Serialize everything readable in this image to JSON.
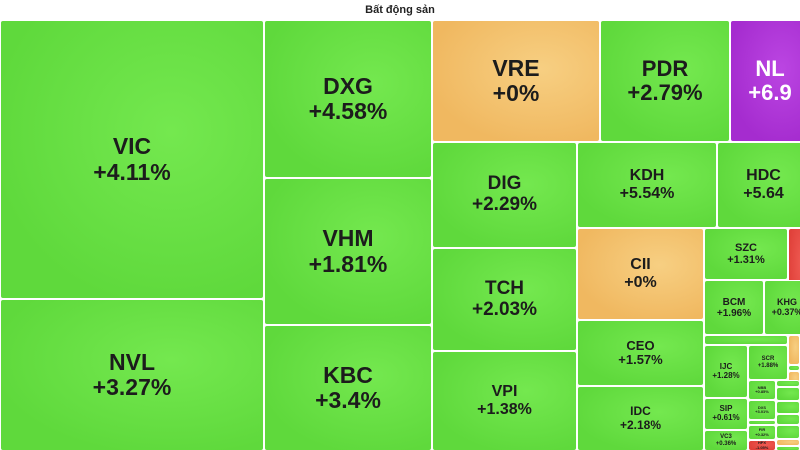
{
  "chart_data": {
    "type": "treemap",
    "title": "Bất động sản",
    "colors": {
      "up": "#5fd93c",
      "up_light": "#74e84f",
      "flat": "#f0b860",
      "flat_light": "#f7cf82",
      "ceiling": "#a52ccf",
      "ceiling_light": "#bb45e2",
      "down": "#e0413a",
      "down_light": "#ef5a52"
    },
    "tiles": [
      {
        "ticker": "VIC",
        "change": "+4.11%",
        "color": "up"
      },
      {
        "ticker": "NVL",
        "change": "+3.27%",
        "color": "up"
      },
      {
        "ticker": "DXG",
        "change": "+4.58%",
        "color": "up"
      },
      {
        "ticker": "VHM",
        "change": "+1.81%",
        "color": "up"
      },
      {
        "ticker": "KBC",
        "change": "+3.4%",
        "color": "up"
      },
      {
        "ticker": "VRE",
        "change": "+0%",
        "color": "flat"
      },
      {
        "ticker": "DIG",
        "change": "+2.29%",
        "color": "up"
      },
      {
        "ticker": "TCH",
        "change": "+2.03%",
        "color": "up"
      },
      {
        "ticker": "VPI",
        "change": "+1.38%",
        "color": "up"
      },
      {
        "ticker": "PDR",
        "change": "+2.79%",
        "color": "up"
      },
      {
        "ticker": "NL",
        "change": "+6.9",
        "color": "ceiling"
      },
      {
        "ticker": "KDH",
        "change": "+5.54%",
        "color": "up"
      },
      {
        "ticker": "HDC",
        "change": "+5.64",
        "color": "up"
      },
      {
        "ticker": "CII",
        "change": "+0%",
        "color": "flat"
      },
      {
        "ticker": "CEO",
        "change": "+1.57%",
        "color": "up"
      },
      {
        "ticker": "IDC",
        "change": "+2.18%",
        "color": "up"
      },
      {
        "ticker": "SZC",
        "change": "+1.31%",
        "color": "up"
      },
      {
        "ticker": "",
        "change": "",
        "color": "down"
      },
      {
        "ticker": "BCM",
        "change": "+1.96%",
        "color": "up"
      },
      {
        "ticker": "KHG",
        "change": "+0.37%",
        "color": "up"
      },
      {
        "ticker": "",
        "change": "",
        "color": "up"
      },
      {
        "ticker": "",
        "change": "",
        "color": "flat"
      },
      {
        "ticker": "IJC",
        "change": "+1.28%",
        "color": "up"
      },
      {
        "ticker": "SCR",
        "change": "+1.88%",
        "color": "up"
      },
      {
        "ticker": "",
        "change": "",
        "color": "up"
      },
      {
        "ticker": "",
        "change": "",
        "color": "flat"
      },
      {
        "ticker": "NBB",
        "change": "+0.85%",
        "color": "up"
      },
      {
        "ticker": "",
        "change": "",
        "color": "up"
      },
      {
        "ticker": "",
        "change": "",
        "color": "up"
      },
      {
        "ticker": "SIP",
        "change": "+0.61%",
        "color": "up"
      },
      {
        "ticker": "DXS",
        "change": "+3.01%",
        "color": "up"
      },
      {
        "ticker": "",
        "change": "",
        "color": "up"
      },
      {
        "ticker": "",
        "change": "",
        "color": "up"
      },
      {
        "ticker": "",
        "change": "",
        "color": "up"
      },
      {
        "ticker": "FIR",
        "change": "+0.32%",
        "color": "up"
      },
      {
        "ticker": "",
        "change": "",
        "color": "up"
      },
      {
        "ticker": "VC3",
        "change": "+0.36%",
        "color": "up"
      },
      {
        "ticker": "HPX",
        "change": "-1.05%",
        "color": "down"
      },
      {
        "ticker": "",
        "change": "",
        "color": "flat"
      },
      {
        "ticker": "",
        "change": "",
        "color": "up"
      }
    ]
  }
}
